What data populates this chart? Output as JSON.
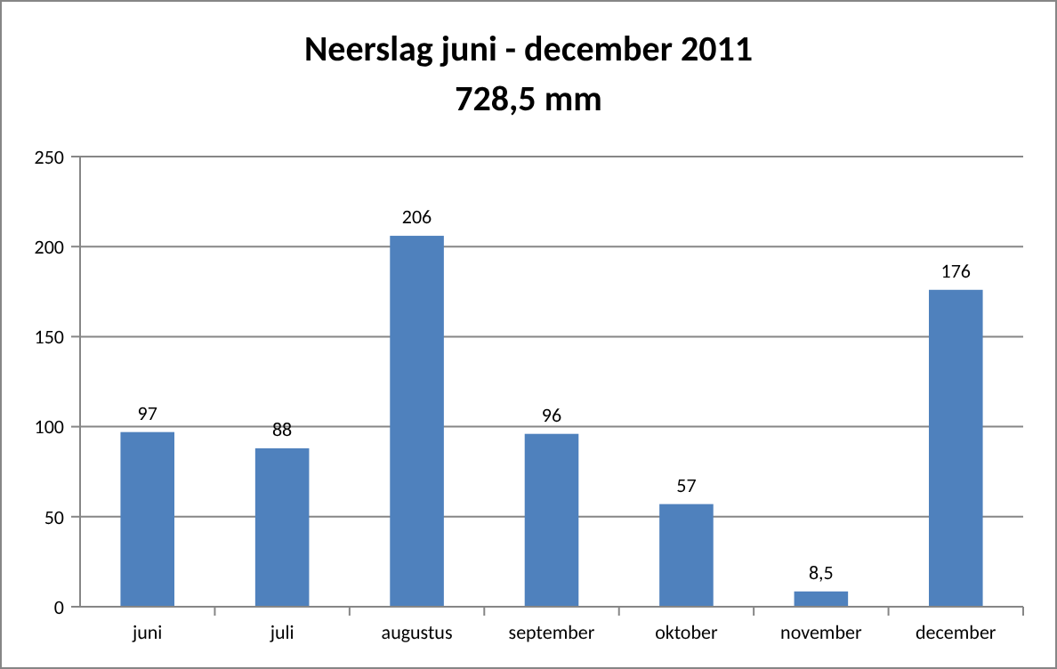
{
  "chart_data": {
    "type": "bar",
    "title": "Neerslag juni - december 2011",
    "subtitle": "728,5 mm",
    "categories": [
      "juni",
      "juli",
      "augustus",
      "september",
      "oktober",
      "november",
      "december"
    ],
    "values": [
      97,
      88,
      206,
      96,
      57,
      8.5,
      176
    ],
    "value_labels": [
      "97",
      "88",
      "206",
      "96",
      "57",
      "8,5",
      "176"
    ],
    "color": "#4f81bd",
    "ylim": [
      0,
      250
    ],
    "yticks": [
      0,
      50,
      100,
      150,
      200,
      250
    ],
    "grid": "y"
  }
}
